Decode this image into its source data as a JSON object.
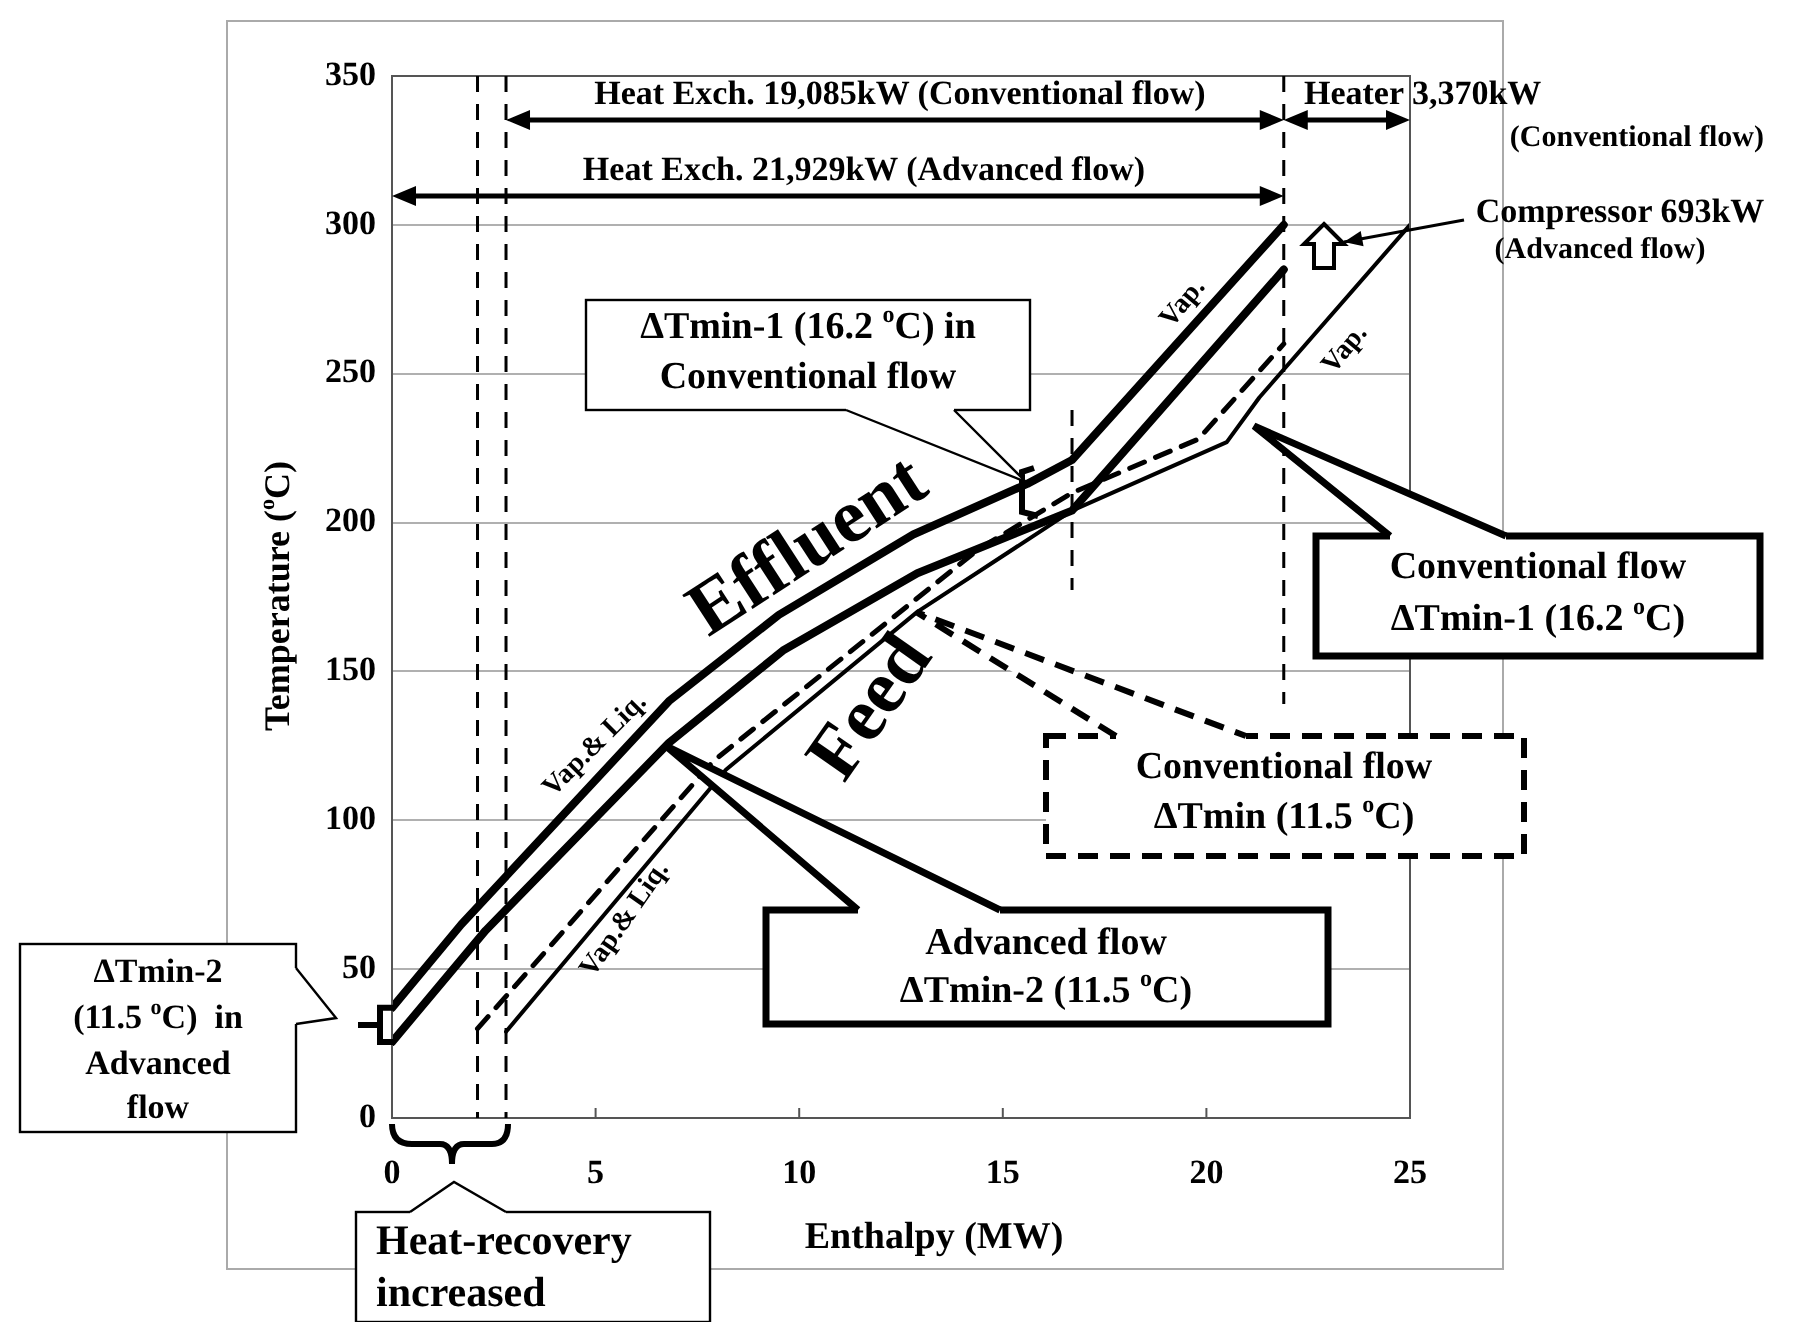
{
  "chart_data": {
    "type": "line",
    "xlabel": "Enthalpy (MW)",
    "ylabel": "Temperature ($^{o}$C)",
    "xlim": [
      0,
      25
    ],
    "xticks": [
      0,
      5,
      10,
      15,
      20,
      25
    ],
    "ylim": [
      0,
      350
    ],
    "yticks": [
      0,
      50,
      100,
      150,
      200,
      250,
      300,
      350
    ],
    "grid": "y",
    "series": [
      {
        "color": "#000000",
        "line_style": "solid",
        "x": [
          0,
          1.7,
          6.8,
          9.5,
          12.8,
          15.6,
          16.7,
          21.9
        ],
        "values": [
          37,
          65,
          140,
          169,
          196,
          213,
          221,
          300
        ]
      },
      {
        "color": "#000000",
        "line_style": "solid",
        "x": [
          0,
          2.3,
          6.8,
          9.6,
          12.9,
          16.7,
          21.9
        ],
        "values": [
          25.5,
          63,
          126,
          157,
          183,
          204,
          285
        ]
      },
      {
        "color": "#000000",
        "line_style": "dashed",
        "x": [
          2.1,
          7.9,
          14.4,
          16.7,
          19.8,
          21.9
        ],
        "values": [
          30,
          120,
          191,
          210,
          228,
          260
        ]
      },
      {
        "color": "#000000",
        "line_style": "solid",
        "x": [
          2.8,
          8.2,
          12.9,
          16.7,
          20.5,
          21.3,
          25
        ],
        "values": [
          29,
          117,
          170,
          204,
          227,
          242,
          300
        ]
      }
    ],
    "ref_lines": [
      {
        "axis": "x",
        "value": 2.1,
        "line_style": "dashed"
      },
      {
        "axis": "x",
        "value": 2.8,
        "line_style": "dashed"
      },
      {
        "axis": "x",
        "value": 21.9,
        "line_style": "dashed"
      },
      {
        "axis": "x",
        "value": 16.7,
        "line_style": "dashed"
      }
    ],
    "annotations": [
      "Heat Exch. 19,085kW (Conventional flow)",
      "Heater 3,370kW\n(Conventional flow)",
      "Heat Exch. 21,929kW (Advanced flow)",
      "Compressor 693kW\n(Advanced flow)",
      "ΔTmin-1 (16.2 $^{o}$C) in\nConventional flow",
      "Conventional flow\nΔTmin-1 (16.2 $^{o}$C)",
      "Conventional flow\nΔTmin (11.5 $^{o}$C)",
      "Advanced flow\nΔTmin-2 (11.5 $^{o}$C)",
      "ΔTmin-2\n(11.5 $^{o}$C)  in\nAdvanced\nflow",
      "Heat-recovery\nincreased",
      "Effluent",
      "Feed",
      "Vap.& Liq.",
      "Vap.& Liq.",
      "Vap.",
      "Vap."
    ]
  }
}
